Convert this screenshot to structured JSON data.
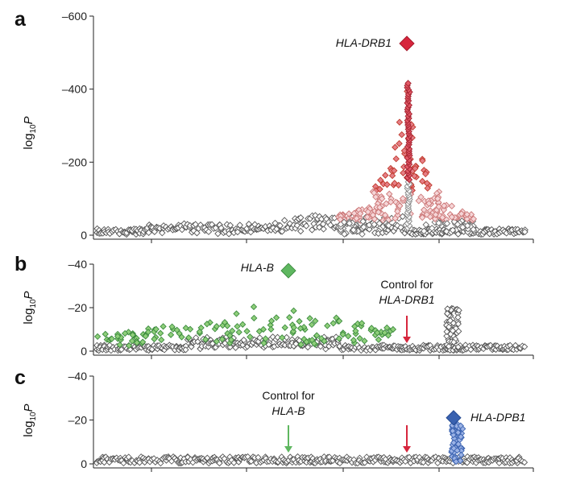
{
  "chart_data": [
    {
      "panel": "a",
      "type": "scatter",
      "ylabel_base": "log",
      "ylabel_sub": "10",
      "ylabel_p": "P",
      "ylim": [
        0,
        -600
      ],
      "yticks": [
        "–600",
        "–400",
        "–200",
        "0"
      ],
      "ytick_values": [
        -600,
        -400,
        -200,
        0
      ],
      "lead_snp": {
        "label": "HLA-DRB1",
        "value": -525,
        "color": "#d7263d"
      },
      "arrows": [],
      "annotations": []
    },
    {
      "panel": "b",
      "type": "scatter",
      "ylabel_base": "log",
      "ylabel_sub": "10",
      "ylabel_p": "P",
      "ylim": [
        0,
        -40
      ],
      "yticks": [
        "–40",
        "–20",
        "0"
      ],
      "ytick_values": [
        -40,
        -20,
        0
      ],
      "lead_snp": {
        "label": "HLA-B",
        "value": -37,
        "color": "#5fb760"
      },
      "arrows": [
        {
          "color": "#d7263d",
          "target": "HLA-DRB1"
        }
      ],
      "annotations": [
        {
          "line1": "Control for",
          "line2": "HLA-DRB1"
        }
      ]
    },
    {
      "panel": "c",
      "type": "scatter",
      "ylabel_base": "log",
      "ylabel_sub": "10",
      "ylabel_p": "P",
      "ylim": [
        0,
        -40
      ],
      "yticks": [
        "–40",
        "–20",
        "0"
      ],
      "ytick_values": [
        -40,
        -20,
        0
      ],
      "lead_snp": {
        "label": "HLA-DPB1",
        "value": -21,
        "color": "#3a62b0"
      },
      "arrows": [
        {
          "color": "#5fb760",
          "target": "HLA-B"
        },
        {
          "color": "#d7263d",
          "target": "HLA-DRB1"
        }
      ],
      "annotations": [
        {
          "line1": "Control for",
          "line2": "HLA-B"
        }
      ]
    }
  ]
}
